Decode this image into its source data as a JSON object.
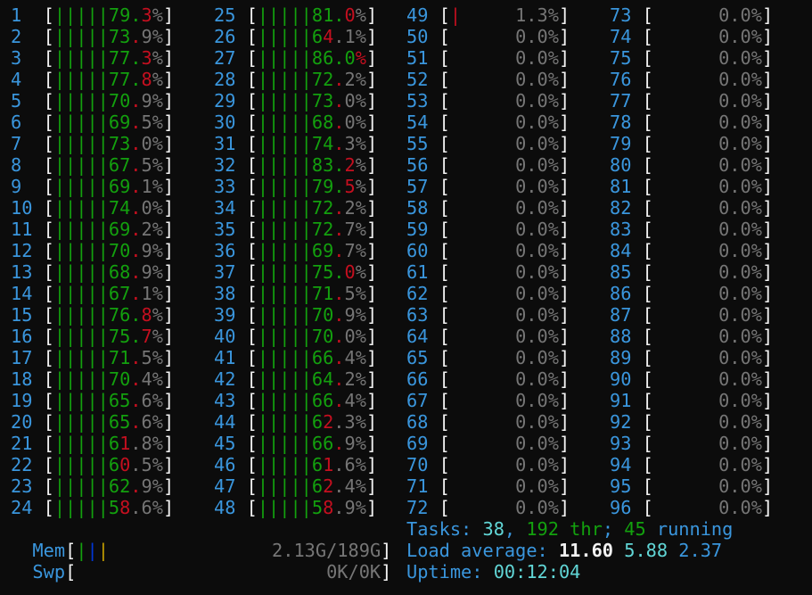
{
  "colors": {
    "background": "#0c0c0c",
    "label": "#3a96dd",
    "user": "#13a10e",
    "kernel": "#c50f1f",
    "text": "#767676",
    "bracket": "#f2f2f2",
    "mem_used": "#13a10e",
    "mem_buffers": "#0037da",
    "mem_cache": "#c19c00",
    "cyan": "#61d6d6"
  },
  "cpus": [
    {
      "label": "1",
      "value": "79.3%",
      "user": 0.8,
      "sys": 0.1
    },
    {
      "label": "2",
      "value": "73.9%",
      "user": 0.7,
      "sys": 0.1
    },
    {
      "label": "3",
      "value": "77.3%",
      "user": 0.8,
      "sys": 0.1
    },
    {
      "label": "4",
      "value": "77.8%",
      "user": 0.8,
      "sys": 0.1
    },
    {
      "label": "5",
      "value": "70.9%",
      "user": 0.7,
      "sys": 0.1
    },
    {
      "label": "6",
      "value": "69.5%",
      "user": 0.7,
      "sys": 0.1
    },
    {
      "label": "7",
      "value": "73.0%",
      "user": 0.7,
      "sys": 0.1
    },
    {
      "label": "8",
      "value": "67.5%",
      "user": 0.7,
      "sys": 0.1
    },
    {
      "label": "9",
      "value": "69.1%",
      "user": 0.7,
      "sys": 0.1
    },
    {
      "label": "10",
      "value": "74.0%",
      "user": 0.7,
      "sys": 0.1
    },
    {
      "label": "11",
      "value": "69.2%",
      "user": 0.7,
      "sys": 0.1
    },
    {
      "label": "12",
      "value": "70.9%",
      "user": 0.7,
      "sys": 0.1
    },
    {
      "label": "13",
      "value": "68.9%",
      "user": 0.7,
      "sys": 0.1
    },
    {
      "label": "14",
      "value": "67.1%",
      "user": 0.7,
      "sys": 0.1
    },
    {
      "label": "15",
      "value": "76.8%",
      "user": 0.8,
      "sys": 0.1
    },
    {
      "label": "16",
      "value": "75.7%",
      "user": 0.8,
      "sys": 0.1
    },
    {
      "label": "17",
      "value": "71.5%",
      "user": 0.7,
      "sys": 0.1
    },
    {
      "label": "18",
      "value": "70.4%",
      "user": 0.7,
      "sys": 0.1
    },
    {
      "label": "19",
      "value": "65.6%",
      "user": 0.7,
      "sys": 0.1
    },
    {
      "label": "20",
      "value": "65.6%",
      "user": 0.7,
      "sys": 0.1
    },
    {
      "label": "21",
      "value": "61.8%",
      "user": 0.6,
      "sys": 0.1
    },
    {
      "label": "22",
      "value": "60.5%",
      "user": 0.6,
      "sys": 0.1
    },
    {
      "label": "23",
      "value": "62.9%",
      "user": 0.7,
      "sys": 0.1
    },
    {
      "label": "24",
      "value": "58.6%",
      "user": 0.6,
      "sys": 0.1
    },
    {
      "label": "25",
      "value": "81.0%",
      "user": 0.8,
      "sys": 0.1
    },
    {
      "label": "26",
      "value": "64.1%",
      "user": 0.6,
      "sys": 0.1
    },
    {
      "label": "27",
      "value": "86.0%",
      "user": 0.9,
      "sys": 0.1
    },
    {
      "label": "28",
      "value": "72.2%",
      "user": 0.7,
      "sys": 0.1
    },
    {
      "label": "29",
      "value": "73.0%",
      "user": 0.7,
      "sys": 0.1
    },
    {
      "label": "30",
      "value": "68.0%",
      "user": 0.7,
      "sys": 0.1
    },
    {
      "label": "31",
      "value": "74.3%",
      "user": 0.7,
      "sys": 0.1
    },
    {
      "label": "32",
      "value": "83.2%",
      "user": 0.8,
      "sys": 0.1
    },
    {
      "label": "33",
      "value": "79.5%",
      "user": 0.8,
      "sys": 0.1
    },
    {
      "label": "34",
      "value": "72.2%",
      "user": 0.7,
      "sys": 0.1
    },
    {
      "label": "35",
      "value": "72.7%",
      "user": 0.7,
      "sys": 0.1
    },
    {
      "label": "36",
      "value": "69.7%",
      "user": 0.7,
      "sys": 0.1
    },
    {
      "label": "37",
      "value": "75.0%",
      "user": 0.8,
      "sys": 0.1
    },
    {
      "label": "38",
      "value": "71.5%",
      "user": 0.7,
      "sys": 0.1
    },
    {
      "label": "39",
      "value": "70.9%",
      "user": 0.7,
      "sys": 0.1
    },
    {
      "label": "40",
      "value": "70.0%",
      "user": 0.7,
      "sys": 0.1
    },
    {
      "label": "41",
      "value": "66.4%",
      "user": 0.7,
      "sys": 0.1
    },
    {
      "label": "42",
      "value": "64.2%",
      "user": 0.7,
      "sys": 0.1
    },
    {
      "label": "43",
      "value": "66.4%",
      "user": 0.7,
      "sys": 0.1
    },
    {
      "label": "44",
      "value": "62.3%",
      "user": 0.6,
      "sys": 0.1
    },
    {
      "label": "45",
      "value": "66.9%",
      "user": 0.7,
      "sys": 0.1
    },
    {
      "label": "46",
      "value": "61.6%",
      "user": 0.6,
      "sys": 0.1
    },
    {
      "label": "47",
      "value": "62.4%",
      "user": 0.6,
      "sys": 0.1
    },
    {
      "label": "48",
      "value": "58.9%",
      "user": 0.6,
      "sys": 0.1
    },
    {
      "label": "49",
      "value": "1.3%",
      "user": 0,
      "sys": 0.1
    },
    {
      "label": "50",
      "value": "0.0%",
      "user": 0,
      "sys": 0
    },
    {
      "label": "51",
      "value": "0.0%",
      "user": 0,
      "sys": 0
    },
    {
      "label": "52",
      "value": "0.0%",
      "user": 0,
      "sys": 0
    },
    {
      "label": "53",
      "value": "0.0%",
      "user": 0,
      "sys": 0
    },
    {
      "label": "54",
      "value": "0.0%",
      "user": 0,
      "sys": 0
    },
    {
      "label": "55",
      "value": "0.0%",
      "user": 0,
      "sys": 0
    },
    {
      "label": "56",
      "value": "0.0%",
      "user": 0,
      "sys": 0
    },
    {
      "label": "57",
      "value": "0.0%",
      "user": 0,
      "sys": 0
    },
    {
      "label": "58",
      "value": "0.0%",
      "user": 0,
      "sys": 0
    },
    {
      "label": "59",
      "value": "0.0%",
      "user": 0,
      "sys": 0
    },
    {
      "label": "60",
      "value": "0.0%",
      "user": 0,
      "sys": 0
    },
    {
      "label": "61",
      "value": "0.0%",
      "user": 0,
      "sys": 0
    },
    {
      "label": "62",
      "value": "0.0%",
      "user": 0,
      "sys": 0
    },
    {
      "label": "63",
      "value": "0.0%",
      "user": 0,
      "sys": 0
    },
    {
      "label": "64",
      "value": "0.0%",
      "user": 0,
      "sys": 0
    },
    {
      "label": "65",
      "value": "0.0%",
      "user": 0,
      "sys": 0
    },
    {
      "label": "66",
      "value": "0.0%",
      "user": 0,
      "sys": 0
    },
    {
      "label": "67",
      "value": "0.0%",
      "user": 0,
      "sys": 0
    },
    {
      "label": "68",
      "value": "0.0%",
      "user": 0,
      "sys": 0
    },
    {
      "label": "69",
      "value": "0.0%",
      "user": 0,
      "sys": 0
    },
    {
      "label": "70",
      "value": "0.0%",
      "user": 0,
      "sys": 0
    },
    {
      "label": "71",
      "value": "0.0%",
      "user": 0,
      "sys": 0
    },
    {
      "label": "72",
      "value": "0.0%",
      "user": 0,
      "sys": 0
    },
    {
      "label": "73",
      "value": "0.0%",
      "user": 0,
      "sys": 0
    },
    {
      "label": "74",
      "value": "0.0%",
      "user": 0,
      "sys": 0
    },
    {
      "label": "75",
      "value": "0.0%",
      "user": 0,
      "sys": 0
    },
    {
      "label": "76",
      "value": "0.0%",
      "user": 0,
      "sys": 0
    },
    {
      "label": "77",
      "value": "0.0%",
      "user": 0,
      "sys": 0
    },
    {
      "label": "78",
      "value": "0.0%",
      "user": 0,
      "sys": 0
    },
    {
      "label": "79",
      "value": "0.0%",
      "user": 0,
      "sys": 0
    },
    {
      "label": "80",
      "value": "0.0%",
      "user": 0,
      "sys": 0
    },
    {
      "label": "81",
      "value": "0.0%",
      "user": 0,
      "sys": 0
    },
    {
      "label": "82",
      "value": "0.0%",
      "user": 0,
      "sys": 0
    },
    {
      "label": "83",
      "value": "0.0%",
      "user": 0,
      "sys": 0
    },
    {
      "label": "84",
      "value": "0.0%",
      "user": 0,
      "sys": 0
    },
    {
      "label": "85",
      "value": "0.0%",
      "user": 0,
      "sys": 0
    },
    {
      "label": "86",
      "value": "0.0%",
      "user": 0,
      "sys": 0
    },
    {
      "label": "87",
      "value": "0.0%",
      "user": 0,
      "sys": 0
    },
    {
      "label": "88",
      "value": "0.0%",
      "user": 0,
      "sys": 0
    },
    {
      "label": "89",
      "value": "0.0%",
      "user": 0,
      "sys": 0
    },
    {
      "label": "90",
      "value": "0.0%",
      "user": 0,
      "sys": 0
    },
    {
      "label": "91",
      "value": "0.0%",
      "user": 0,
      "sys": 0
    },
    {
      "label": "92",
      "value": "0.0%",
      "user": 0,
      "sys": 0
    },
    {
      "label": "93",
      "value": "0.0%",
      "user": 0,
      "sys": 0
    },
    {
      "label": "94",
      "value": "0.0%",
      "user": 0,
      "sys": 0
    },
    {
      "label": "95",
      "value": "0.0%",
      "user": 0,
      "sys": 0
    },
    {
      "label": "96",
      "value": "0.0%",
      "user": 0,
      "sys": 0
    }
  ],
  "mem": {
    "label": "Mem",
    "value": "2.13G/189G",
    "used": 0.036,
    "buffers": 0.036,
    "cache": 0.036
  },
  "swp": {
    "label": "Swp",
    "value": "0K/0K",
    "used": 0
  },
  "tasks": {
    "label": "Tasks: ",
    "count": "38",
    "sep1": ", ",
    "threads": "192 thr",
    "sep2": "; ",
    "running_count": "45",
    "running_label": " running"
  },
  "load": {
    "label": "Load average: ",
    "one": "11.60",
    "five": "5.88",
    "fifteen": "2.37"
  },
  "uptime": {
    "label": "Uptime: ",
    "value": "00:12:04"
  }
}
